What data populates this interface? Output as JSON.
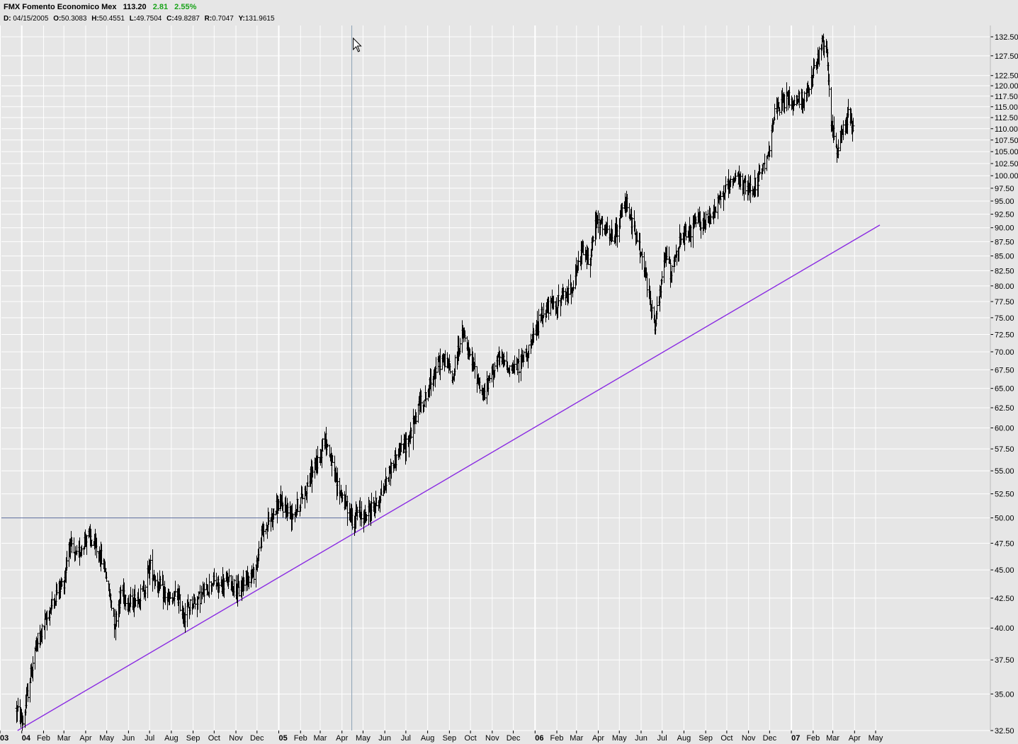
{
  "header": {
    "symbol_name": "FMX Fomento Economico Mex",
    "last": "113.20",
    "change": "2.81",
    "change_pct": "2.55%",
    "change_color": "#1aa31a"
  },
  "ohlc": {
    "date_label": "D:",
    "date": "04/15/2005",
    "open_label": "O:",
    "open": "50.3083",
    "high_label": "H:",
    "high": "50.4551",
    "low_label": "L:",
    "low": "49.7504",
    "close_label": "C:",
    "close": "49.8287",
    "range_label": "R:",
    "range": "0.7047",
    "y_label": "Y:",
    "y": "131.9615"
  },
  "colors": {
    "background": "#e6e6e6",
    "grid": "#ffffff",
    "bars": "#000000",
    "trendline": "#8a2be2",
    "crosshair": "#5a6a9a"
  },
  "chart_data": {
    "type": "ohlc",
    "scale": "log",
    "ylim": [
      32.5,
      132.5
    ],
    "y_ticks": [
      "32.50",
      "35.00",
      "37.50",
      "40.00",
      "42.50",
      "45.00",
      "47.50",
      "50.00",
      "52.50",
      "55.00",
      "57.50",
      "60.00",
      "62.50",
      "65.00",
      "67.50",
      "70.00",
      "72.50",
      "75.00",
      "77.50",
      "80.00",
      "82.50",
      "85.00",
      "87.50",
      "90.00",
      "92.50",
      "95.00",
      "97.50",
      "100.00",
      "102.50",
      "105.00",
      "107.50",
      "110.00",
      "112.50",
      "115.00",
      "117.50",
      "120.00",
      "122.50",
      "127.50",
      "132.50"
    ],
    "x_ticks": [
      {
        "label": "03",
        "date": "2003-12",
        "bold": true
      },
      {
        "label": "04",
        "date": "2004-01",
        "bold": true
      },
      {
        "label": "Feb",
        "date": "2004-02"
      },
      {
        "label": "Mar",
        "date": "2004-03"
      },
      {
        "label": "Apr",
        "date": "2004-04"
      },
      {
        "label": "May",
        "date": "2004-05"
      },
      {
        "label": "Jun",
        "date": "2004-06"
      },
      {
        "label": "Jul",
        "date": "2004-07"
      },
      {
        "label": "Aug",
        "date": "2004-08"
      },
      {
        "label": "Sep",
        "date": "2004-09"
      },
      {
        "label": "Oct",
        "date": "2004-10"
      },
      {
        "label": "Nov",
        "date": "2004-11"
      },
      {
        "label": "Dec",
        "date": "2004-12"
      },
      {
        "label": "05",
        "date": "2005-01",
        "bold": true
      },
      {
        "label": "Feb",
        "date": "2005-02"
      },
      {
        "label": "Mar",
        "date": "2005-03"
      },
      {
        "label": "Apr",
        "date": "2005-04"
      },
      {
        "label": "May",
        "date": "2005-05"
      },
      {
        "label": "Jun",
        "date": "2005-06"
      },
      {
        "label": "Jul",
        "date": "2005-07"
      },
      {
        "label": "Aug",
        "date": "2005-08"
      },
      {
        "label": "Sep",
        "date": "2005-09"
      },
      {
        "label": "Oct",
        "date": "2005-10"
      },
      {
        "label": "Nov",
        "date": "2005-11"
      },
      {
        "label": "Dec",
        "date": "2005-12"
      },
      {
        "label": "06",
        "date": "2006-01",
        "bold": true
      },
      {
        "label": "Feb",
        "date": "2006-02"
      },
      {
        "label": "Mar",
        "date": "2006-03"
      },
      {
        "label": "Apr",
        "date": "2006-04"
      },
      {
        "label": "May",
        "date": "2006-05"
      },
      {
        "label": "Jun",
        "date": "2006-06"
      },
      {
        "label": "Jul",
        "date": "2006-07"
      },
      {
        "label": "Aug",
        "date": "2006-08"
      },
      {
        "label": "Sep",
        "date": "2006-09"
      },
      {
        "label": "Oct",
        "date": "2006-10"
      },
      {
        "label": "Nov",
        "date": "2006-11"
      },
      {
        "label": "Dec",
        "date": "2006-12"
      },
      {
        "label": "07",
        "date": "2007-01",
        "bold": true
      },
      {
        "label": "Feb",
        "date": "2007-02"
      },
      {
        "label": "Mar",
        "date": "2007-03"
      },
      {
        "label": "Apr",
        "date": "2007-04"
      },
      {
        "label": "May",
        "date": "2007-05"
      }
    ],
    "price_path": [
      [
        "2003-12-24",
        34.0
      ],
      [
        "2004-01-02",
        33.0
      ],
      [
        "2004-01-10",
        35.5
      ],
      [
        "2004-01-20",
        38.5
      ],
      [
        "2004-02-01",
        40.0
      ],
      [
        "2004-02-10",
        41.5
      ],
      [
        "2004-02-20",
        43.0
      ],
      [
        "2004-03-01",
        44.0
      ],
      [
        "2004-03-08",
        47.5
      ],
      [
        "2004-03-18",
        46.0
      ],
      [
        "2004-03-28",
        47.5
      ],
      [
        "2004-04-03",
        48.5
      ],
      [
        "2004-04-10",
        47.5
      ],
      [
        "2004-04-20",
        46.5
      ],
      [
        "2004-04-28",
        45.0
      ],
      [
        "2004-05-05",
        42.5
      ],
      [
        "2004-05-12",
        40.5
      ],
      [
        "2004-05-22",
        43.5
      ],
      [
        "2004-06-01",
        42.0
      ],
      [
        "2004-06-12",
        42.5
      ],
      [
        "2004-06-22",
        43.0
      ],
      [
        "2004-07-01",
        45.5
      ],
      [
        "2004-07-10",
        44.0
      ],
      [
        "2004-07-20",
        43.0
      ],
      [
        "2004-08-01",
        42.0
      ],
      [
        "2004-08-08",
        43.0
      ],
      [
        "2004-08-18",
        41.0
      ],
      [
        "2004-08-28",
        42.0
      ],
      [
        "2004-09-08",
        42.5
      ],
      [
        "2004-09-18",
        43.0
      ],
      [
        "2004-09-28",
        44.0
      ],
      [
        "2004-10-08",
        43.5
      ],
      [
        "2004-10-20",
        44.0
      ],
      [
        "2004-10-30",
        43.5
      ],
      [
        "2004-11-05",
        43.0
      ],
      [
        "2004-11-15",
        44.5
      ],
      [
        "2004-11-25",
        44.5
      ],
      [
        "2004-12-01",
        46.0
      ],
      [
        "2004-12-08",
        48.5
      ],
      [
        "2004-12-20",
        50.0
      ],
      [
        "2005-01-01",
        51.5
      ],
      [
        "2005-01-10",
        51.0
      ],
      [
        "2005-01-20",
        50.5
      ],
      [
        "2005-01-30",
        51.5
      ],
      [
        "2005-02-08",
        53.0
      ],
      [
        "2005-02-18",
        55.0
      ],
      [
        "2005-02-28",
        56.5
      ],
      [
        "2005-03-06",
        59.0
      ],
      [
        "2005-03-14",
        57.0
      ],
      [
        "2005-03-22",
        54.0
      ],
      [
        "2005-03-30",
        52.5
      ],
      [
        "2005-04-08",
        51.0
      ],
      [
        "2005-04-15",
        49.8
      ],
      [
        "2005-04-25",
        50.5
      ],
      [
        "2005-05-05",
        50.2
      ],
      [
        "2005-05-12",
        51.0
      ],
      [
        "2005-05-20",
        51.5
      ],
      [
        "2005-05-30",
        53.0
      ],
      [
        "2005-06-08",
        55.0
      ],
      [
        "2005-06-20",
        57.0
      ],
      [
        "2005-06-30",
        58.0
      ],
      [
        "2005-07-10",
        60.0
      ],
      [
        "2005-07-20",
        63.0
      ],
      [
        "2005-07-30",
        64.0
      ],
      [
        "2005-08-08",
        67.0
      ],
      [
        "2005-08-18",
        68.5
      ],
      [
        "2005-08-28",
        69.0
      ],
      [
        "2005-09-05",
        66.0
      ],
      [
        "2005-09-12",
        70.0
      ],
      [
        "2005-09-20",
        72.5
      ],
      [
        "2005-09-30",
        69.0
      ],
      [
        "2005-10-05",
        68.0
      ],
      [
        "2005-10-12",
        66.0
      ],
      [
        "2005-10-20",
        64.0
      ],
      [
        "2005-10-30",
        67.0
      ],
      [
        "2005-11-08",
        69.0
      ],
      [
        "2005-11-18",
        68.5
      ],
      [
        "2005-11-28",
        67.5
      ],
      [
        "2005-12-08",
        68.0
      ],
      [
        "2005-12-20",
        70.0
      ],
      [
        "2005-12-30",
        72.0
      ],
      [
        "2006-01-08",
        75.0
      ],
      [
        "2006-01-18",
        76.5
      ],
      [
        "2006-01-28",
        77.0
      ],
      [
        "2006-02-08",
        78.0
      ],
      [
        "2006-02-18",
        79.0
      ],
      [
        "2006-02-28",
        82.0
      ],
      [
        "2006-03-08",
        86.0
      ],
      [
        "2006-03-18",
        84.0
      ],
      [
        "2006-03-28",
        91.0
      ],
      [
        "2006-04-08",
        90.0
      ],
      [
        "2006-04-18",
        88.0
      ],
      [
        "2006-04-28",
        89.0
      ],
      [
        "2006-05-05",
        93.0
      ],
      [
        "2006-05-12",
        95.0
      ],
      [
        "2006-05-20",
        90.0
      ],
      [
        "2006-05-28",
        87.0
      ],
      [
        "2006-06-05",
        83.0
      ],
      [
        "2006-06-12",
        78.0
      ],
      [
        "2006-06-20",
        74.0
      ],
      [
        "2006-06-28",
        79.0
      ],
      [
        "2006-07-05",
        86.0
      ],
      [
        "2006-07-12",
        82.0
      ],
      [
        "2006-07-20",
        86.0
      ],
      [
        "2006-07-30",
        88.0
      ],
      [
        "2006-08-08",
        88.5
      ],
      [
        "2006-08-18",
        91.0
      ],
      [
        "2006-08-28",
        91.0
      ],
      [
        "2006-09-08",
        92.0
      ],
      [
        "2006-09-18",
        95.0
      ],
      [
        "2006-09-28",
        97.0
      ],
      [
        "2006-10-08",
        98.0
      ],
      [
        "2006-10-18",
        99.5
      ],
      [
        "2006-10-28",
        97.0
      ],
      [
        "2006-11-08",
        98.0
      ],
      [
        "2006-11-18",
        100.0
      ],
      [
        "2006-11-28",
        103.0
      ],
      [
        "2006-12-05",
        112.0
      ],
      [
        "2006-12-15",
        115.0
      ],
      [
        "2006-12-25",
        117.0
      ],
      [
        "2007-01-05",
        116.0
      ],
      [
        "2007-01-15",
        117.0
      ],
      [
        "2007-01-25",
        118.0
      ],
      [
        "2007-02-01",
        123.0
      ],
      [
        "2007-02-08",
        127.0
      ],
      [
        "2007-02-14",
        131.0
      ],
      [
        "2007-02-20",
        127.0
      ],
      [
        "2007-02-26",
        112.0
      ],
      [
        "2007-03-05",
        105.0
      ],
      [
        "2007-03-12",
        108.0
      ],
      [
        "2007-03-18",
        110.0
      ],
      [
        "2007-03-24",
        114.0
      ],
      [
        "2007-03-30",
        110.0
      ],
      [
        "2007-04-02",
        113.2
      ]
    ],
    "trendline": {
      "start": [
        "2003-12-26",
        32.5
      ],
      "end": [
        "2007-05-07",
        90.5
      ]
    },
    "horizontal_line": {
      "value": 50.0
    },
    "crosshair_date": "2005-04-15"
  }
}
